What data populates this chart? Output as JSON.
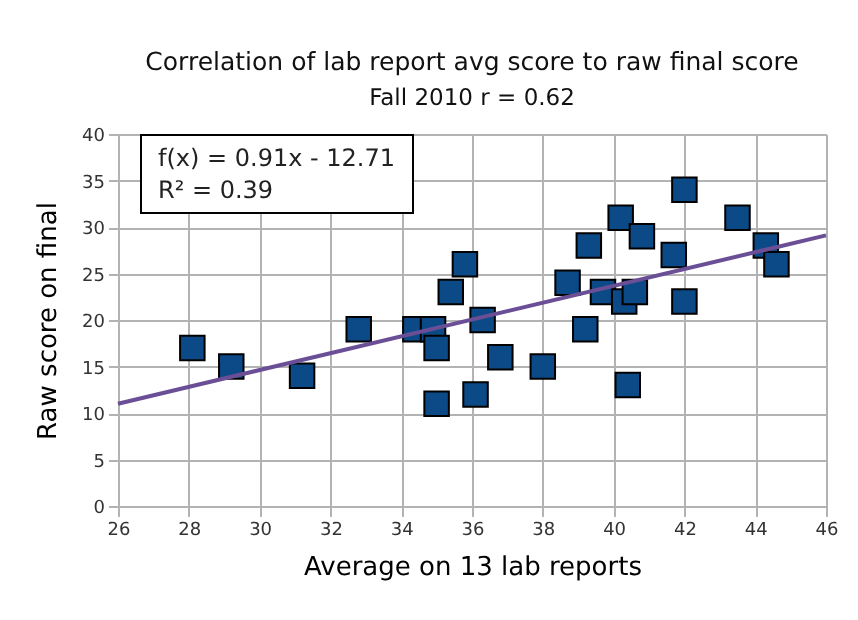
{
  "chart_data": {
    "type": "scatter",
    "title": "Correlation of lab report avg score to raw final score",
    "subtitle": "Fall 2010 r = 0.62",
    "xlabel": "Average on 13 lab reports",
    "ylabel": "Raw score on final",
    "x": [
      28.1,
      29.2,
      31.2,
      32.8,
      34.4,
      34.9,
      35,
      35,
      35.4,
      35.8,
      36.1,
      36.3,
      36.8,
      38,
      38.7,
      39.2,
      39.3,
      39.7,
      40.2,
      40.3,
      40.4,
      40.6,
      40.8,
      41.7,
      42,
      42,
      43.5,
      44.3,
      44.6
    ],
    "series": [
      {
        "marker": "square",
        "color": "#0b4a86",
        "values": [
          17,
          15,
          14,
          19,
          19,
          19,
          17,
          11,
          23,
          26,
          12,
          20,
          16,
          15,
          24,
          19,
          28,
          23,
          31,
          22,
          13,
          23,
          29,
          27,
          22,
          34,
          31,
          28,
          26
        ]
      },
      {
        "type": "line",
        "marker": "none",
        "color": "#6b4f96",
        "x": [
          26,
          46
        ],
        "values": [
          11,
          29.1
        ]
      }
    ],
    "annotations": [
      "f(x) = 0.91x - 12.71",
      "R² = 0.39"
    ],
    "xlim": [
      26,
      46
    ],
    "xticks": [
      26,
      28,
      30,
      32,
      34,
      36,
      38,
      40,
      42,
      44,
      46
    ],
    "ylim": [
      0,
      40
    ],
    "yticks": [
      0,
      5,
      10,
      15,
      20,
      25,
      30,
      35,
      40
    ],
    "grid": true
  }
}
